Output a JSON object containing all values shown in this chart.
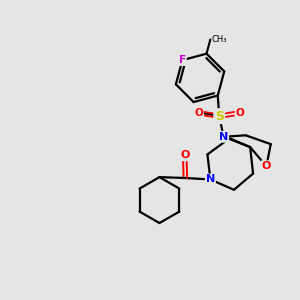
{
  "background_color": "#e5e5e5",
  "bond_color": "#000000",
  "atom_colors": {
    "F": "#cc00cc",
    "O": "#ff0000",
    "N": "#0000ff",
    "S": "#cccc00",
    "C": "#000000"
  },
  "figsize": [
    3.0,
    3.0
  ],
  "dpi": 100
}
